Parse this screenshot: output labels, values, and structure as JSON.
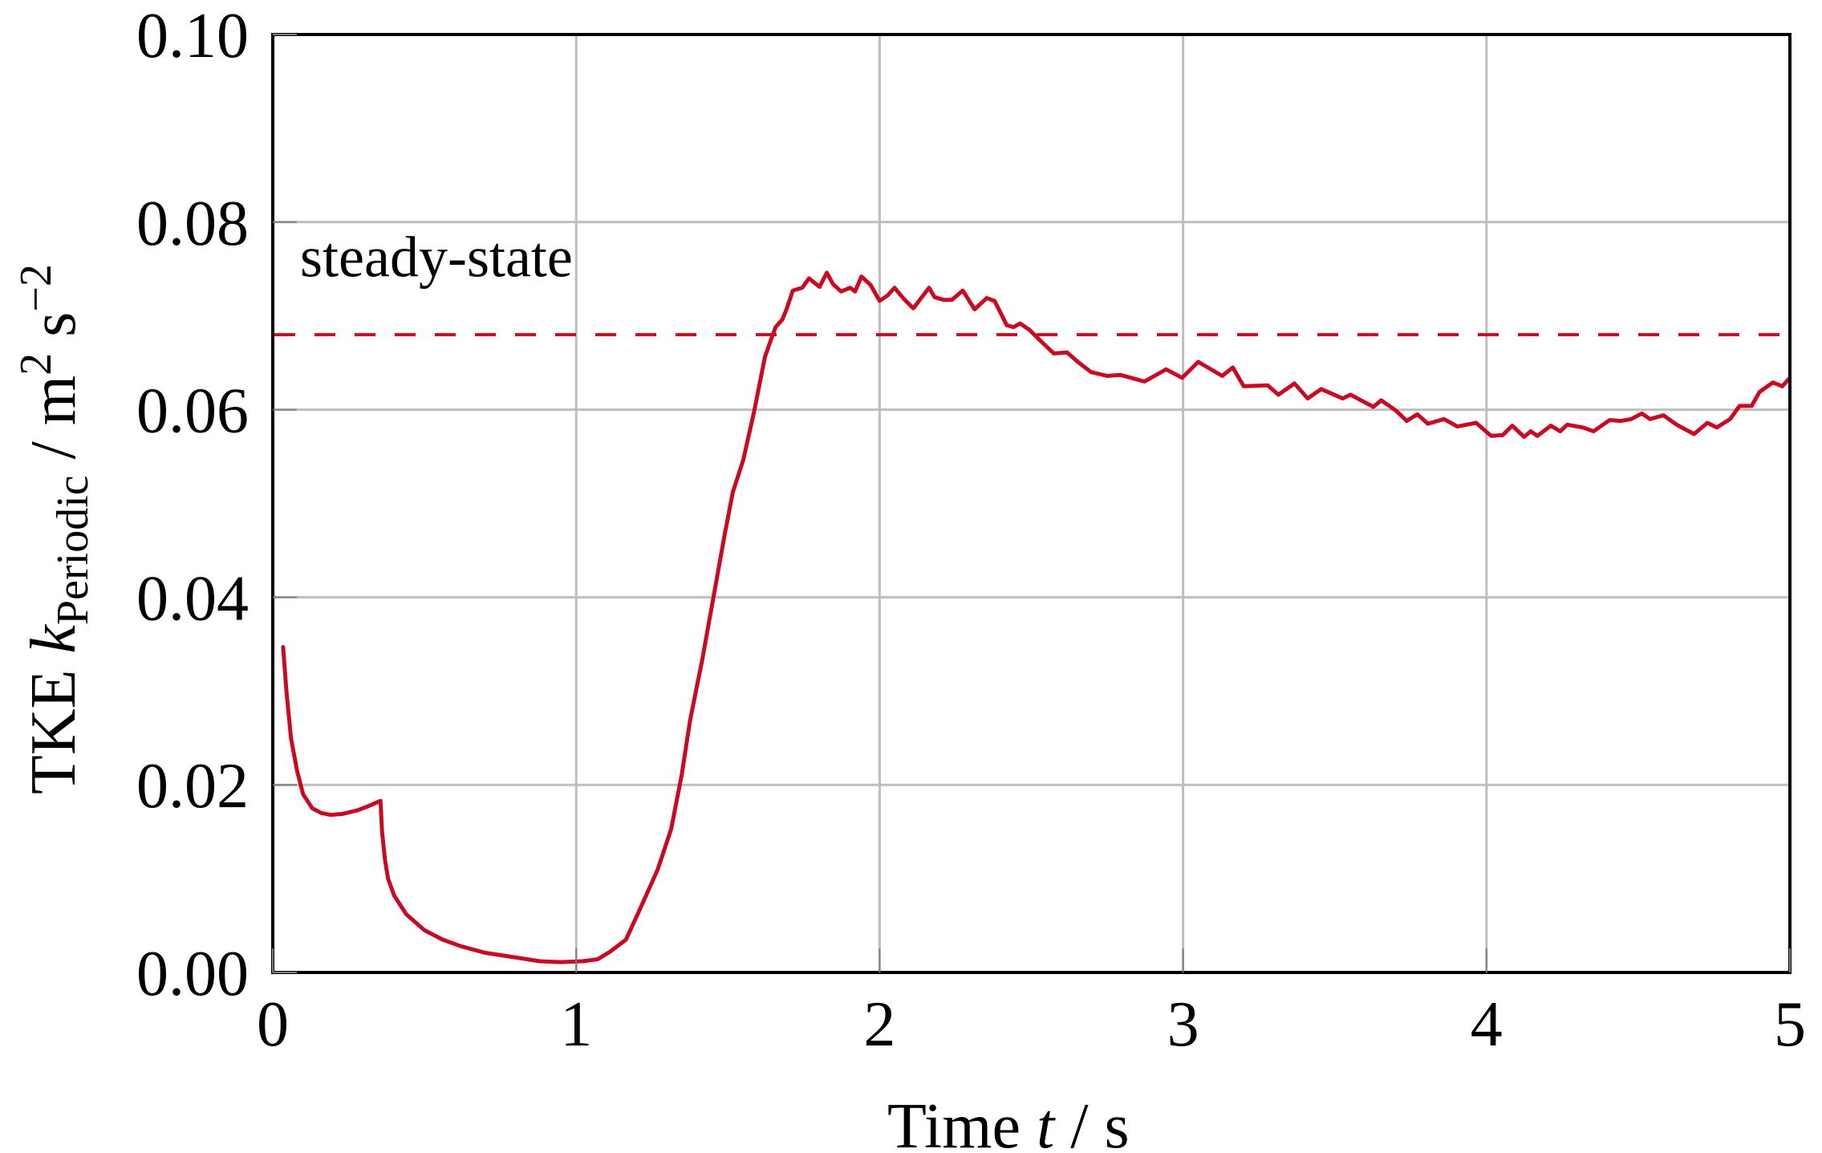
{
  "chart_data": {
    "type": "line",
    "title": "",
    "xlabel": "Time t / s",
    "xlabel_parts": {
      "prefix": "Time ",
      "var": "t",
      "unit": " / s"
    },
    "ylabel": "TKE k_Periodic / m^2 s^-2",
    "ylabel_parts": {
      "prefix": "TKE ",
      "var": "k",
      "sub": "Periodic",
      "sep": " / m",
      "sup1": "2",
      "mid": " s",
      "sup2": "−2"
    },
    "xlim": [
      0,
      5
    ],
    "ylim": [
      0.0,
      0.1
    ],
    "xticks": [
      0,
      1,
      2,
      3,
      4,
      5
    ],
    "xtick_labels": [
      "0",
      "1",
      "2",
      "3",
      "4",
      "5"
    ],
    "yticks": [
      0.0,
      0.02,
      0.04,
      0.06,
      0.08,
      0.1
    ],
    "ytick_labels": [
      "0.00",
      "0.02",
      "0.04",
      "0.06",
      "0.08",
      "0.10"
    ],
    "grid": true,
    "legend": null,
    "colors": {
      "series": "#C90A23",
      "grid": "#BEBEBE",
      "axis": "#000000"
    },
    "annotations": [
      {
        "text": "steady-state",
        "x": 0.09,
        "y": 0.0742
      }
    ],
    "reference_lines": [
      {
        "name": "steady-state",
        "y": 0.068,
        "style": "dashed",
        "color": "#C90A23"
      }
    ],
    "series": [
      {
        "name": "TKE k_Periodic",
        "color": "#C90A23",
        "x": [
          0.034,
          0.045,
          0.06,
          0.08,
          0.1,
          0.13,
          0.16,
          0.19,
          0.23,
          0.28,
          0.32,
          0.355,
          0.36,
          0.37,
          0.38,
          0.4,
          0.44,
          0.5,
          0.56,
          0.62,
          0.7,
          0.78,
          0.88,
          0.95,
          1.02,
          1.07,
          1.111,
          1.164,
          1.208,
          1.269,
          1.313,
          1.348,
          1.375,
          1.415,
          1.454,
          1.49,
          1.516,
          1.551,
          1.587,
          1.622,
          1.639,
          1.657,
          1.679,
          1.692,
          1.714,
          1.745,
          1.767,
          1.802,
          1.826,
          1.846,
          1.873,
          1.903,
          1.919,
          1.94,
          1.97,
          2.0,
          2.027,
          2.049,
          2.08,
          2.111,
          2.137,
          2.163,
          2.181,
          2.212,
          2.238,
          2.274,
          2.313,
          2.353,
          2.379,
          2.419,
          2.441,
          2.463,
          2.494,
          2.538,
          2.574,
          2.618,
          2.653,
          2.697,
          2.75,
          2.794,
          2.873,
          2.944,
          2.997,
          3.05,
          3.129,
          3.164,
          3.2,
          3.279,
          3.314,
          3.367,
          3.411,
          3.455,
          3.526,
          3.552,
          3.627,
          3.653,
          3.702,
          3.737,
          3.772,
          3.807,
          3.86,
          3.904,
          3.966,
          4.015,
          4.054,
          4.085,
          4.124,
          4.146,
          4.168,
          4.212,
          4.243,
          4.266,
          4.318,
          4.353,
          4.406,
          4.442,
          4.477,
          4.512,
          4.539,
          4.583,
          4.627,
          4.684,
          4.728,
          4.759,
          4.803,
          4.834,
          4.874,
          4.9,
          4.944,
          4.975,
          4.997
        ],
        "y": [
          0.0347,
          0.03,
          0.025,
          0.0215,
          0.019,
          0.0175,
          0.017,
          0.0168,
          0.0169,
          0.0173,
          0.0178,
          0.0183,
          0.015,
          0.012,
          0.01,
          0.0082,
          0.0062,
          0.0045,
          0.0035,
          0.0028,
          0.0021,
          0.0017,
          0.0012,
          0.0011,
          0.0012,
          0.0014,
          0.0022,
          0.0035,
          0.0066,
          0.011,
          0.0153,
          0.0211,
          0.0268,
          0.0333,
          0.0403,
          0.0468,
          0.0512,
          0.0547,
          0.0599,
          0.0656,
          0.0672,
          0.0688,
          0.0696,
          0.0706,
          0.0727,
          0.073,
          0.074,
          0.0731,
          0.0746,
          0.0734,
          0.0726,
          0.073,
          0.0726,
          0.0742,
          0.0733,
          0.0716,
          0.0722,
          0.073,
          0.0718,
          0.0708,
          0.0719,
          0.073,
          0.072,
          0.0717,
          0.0717,
          0.0727,
          0.0707,
          0.0719,
          0.0716,
          0.069,
          0.0688,
          0.0692,
          0.0685,
          0.0671,
          0.066,
          0.0661,
          0.0651,
          0.064,
          0.0636,
          0.0637,
          0.063,
          0.0643,
          0.0634,
          0.0651,
          0.0636,
          0.0645,
          0.0625,
          0.0626,
          0.0616,
          0.0628,
          0.0612,
          0.0622,
          0.0612,
          0.0616,
          0.0603,
          0.061,
          0.0599,
          0.0588,
          0.0595,
          0.0585,
          0.059,
          0.0582,
          0.0586,
          0.0572,
          0.0573,
          0.0583,
          0.0571,
          0.0577,
          0.0572,
          0.0583,
          0.0577,
          0.0584,
          0.0581,
          0.0577,
          0.0589,
          0.0588,
          0.059,
          0.0596,
          0.059,
          0.0594,
          0.0584,
          0.0574,
          0.0586,
          0.0581,
          0.059,
          0.0604,
          0.0604,
          0.0619,
          0.0629,
          0.0625,
          0.0633
        ]
      }
    ]
  }
}
